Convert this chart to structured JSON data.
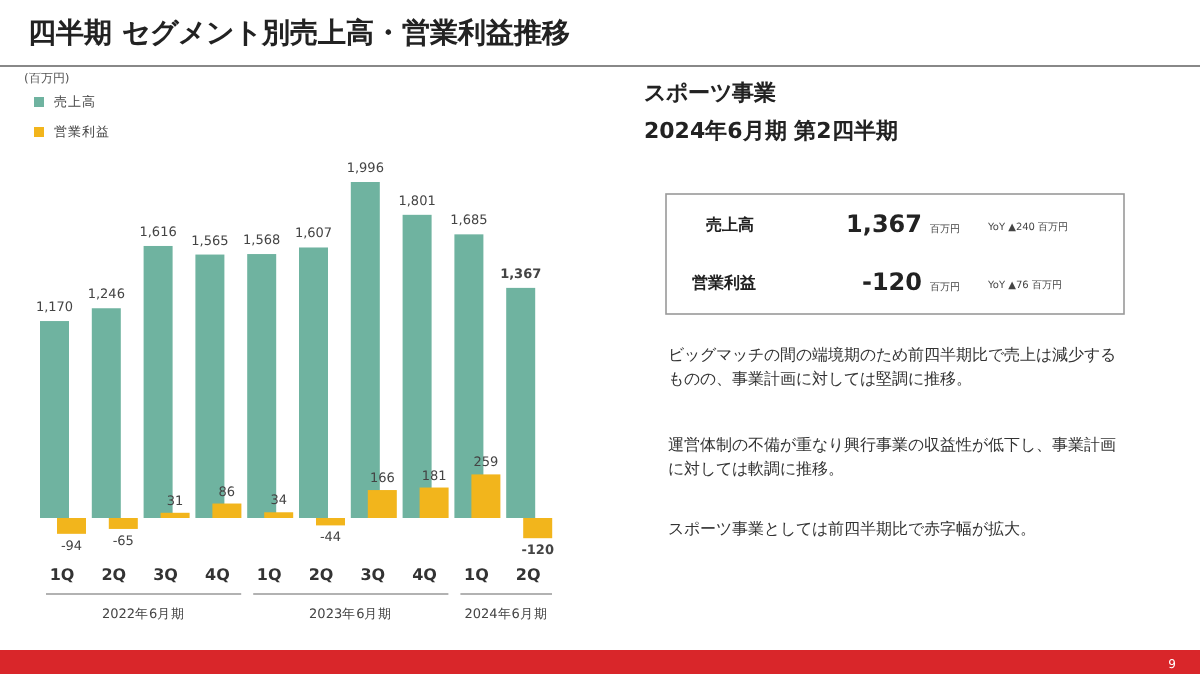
{
  "chart_data": {
    "type": "bar",
    "title": "四半期 セグメント別売上高・営業利益推移",
    "categories": [
      "1Q",
      "2Q",
      "3Q",
      "4Q",
      "1Q",
      "2Q",
      "3Q",
      "4Q",
      "1Q",
      "2Q"
    ],
    "series": [
      {
        "name": "売上高",
        "color": "#6fb3a0",
        "values": [
          1170,
          1246,
          1616,
          1565,
          1568,
          1607,
          1996,
          1801,
          1685,
          1367
        ],
        "value_labels": [
          "1,170",
          "1,246",
          "1,616",
          "1,565",
          "1,568",
          "1,607",
          "1,996",
          "1,801",
          "1,685",
          "1,367"
        ]
      },
      {
        "name": "営業利益",
        "color": "#f2b51c",
        "values": [
          -94,
          -65,
          31,
          86,
          34,
          -44,
          166,
          181,
          259,
          -120
        ],
        "value_labels": [
          "-94",
          "-65",
          "31",
          "86",
          "34",
          "-44",
          "166",
          "181",
          "259",
          "-120"
        ]
      }
    ],
    "legend": "top left",
    "annotations": [
      "(百万円)",
      "2022年6月期",
      "2023年6月期",
      "2024年6月期",
      "スポーツ事業",
      "2024年6月期 第2四半期",
      "売上高",
      "1,367",
      "百万円",
      "YoY ▲240 百万円",
      "営業利益",
      "-120",
      "百万円",
      "YoY ▲76 百万円",
      "ビッグマッチの間の端境期のため前四半期比で売上は減少するものの、事業計画に対しては堅調に推移。",
      "運営体制の不備が重なり興行事業の収益性が低下し、事業計画に対しては軟調に推移。",
      "スポーツ事業としては前四半期比で赤字幅が拡大。",
      "9"
    ]
  }
}
